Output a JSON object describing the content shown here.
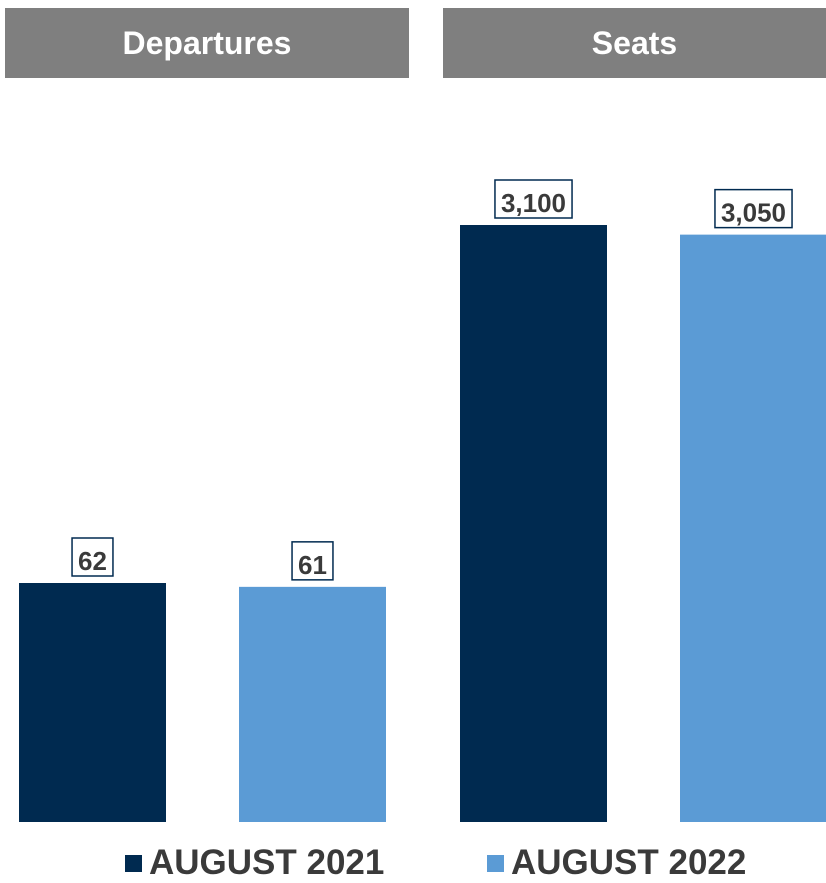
{
  "chart_data": {
    "type": "bar",
    "panels": [
      {
        "title": "Departures",
        "series": [
          {
            "name": "AUGUST 2021",
            "value": 62,
            "label": "62"
          },
          {
            "name": "AUGUST 2022",
            "value": 61,
            "label": "61"
          }
        ]
      },
      {
        "title": "Seats",
        "series": [
          {
            "name": "AUGUST 2021",
            "value": 3100,
            "label": "3,100"
          },
          {
            "name": "AUGUST 2022",
            "value": 3050,
            "label": "3,050"
          }
        ]
      }
    ],
    "legend": [
      {
        "name": "AUGUST 2021",
        "color": "#002a50"
      },
      {
        "name": "AUGUST 2022",
        "color": "#5b9bd5"
      }
    ],
    "legend_position": "bottom",
    "grid": false
  }
}
